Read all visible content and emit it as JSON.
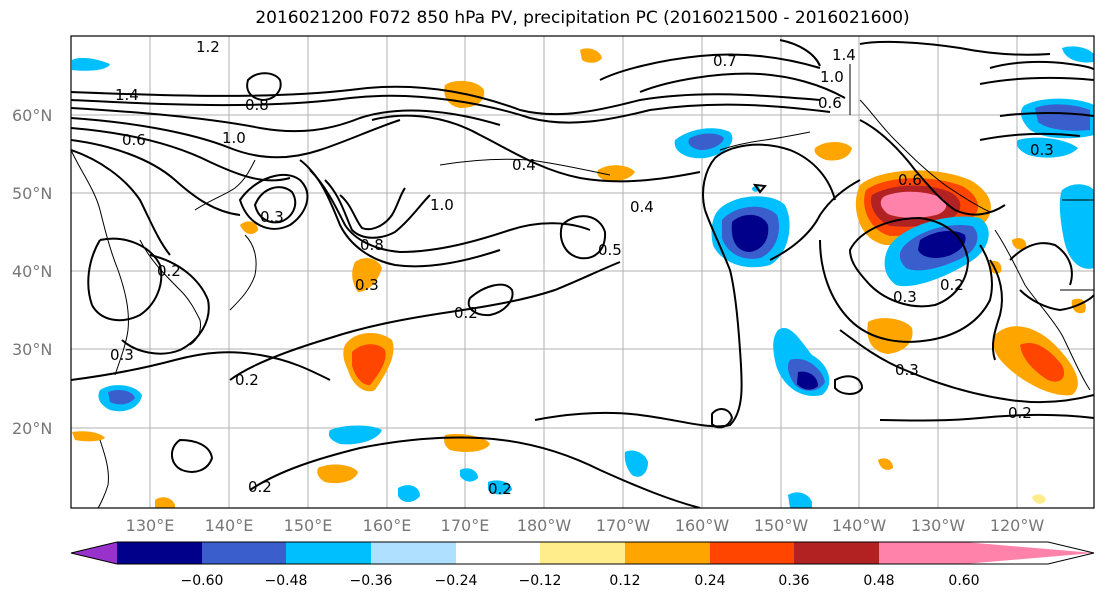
{
  "title": "2016021200 F072 850 hPa PV, precipitation PC (2016021500 - 2016021600)",
  "map": {
    "lat_labels": [
      "60°N",
      "50°N",
      "40°N",
      "30°N",
      "20°N"
    ],
    "lon_labels": [
      "130°E",
      "140°E",
      "150°E",
      "160°E",
      "170°E",
      "180°W",
      "170°W",
      "160°W",
      "150°W",
      "140°W",
      "130°W",
      "120°W"
    ],
    "contour_labels": [
      "1.2",
      "1.4",
      "0.8",
      "1.0",
      "0.6",
      "0.7",
      "1.4",
      "1.0",
      "0.6",
      "0.4",
      "0.5",
      "0.4",
      "0.3",
      "0.2",
      "0.3",
      "0.8",
      "1.0",
      "0.3",
      "0.2",
      "0.2",
      "0.2",
      "0.2",
      "0.3",
      "0.2",
      "0.6",
      "0.3",
      "0.2",
      "0.3"
    ]
  },
  "colorbar": {
    "ticks": [
      "−0.60",
      "−0.48",
      "−0.36",
      "−0.24",
      "−0.12",
      "0.12",
      "0.24",
      "0.36",
      "0.48",
      "0.60"
    ],
    "colors": [
      "#9932cc",
      "#00008b",
      "#3a5fcd",
      "#00bfff",
      "#b0e0ff",
      "#ffffff",
      "#ffec8b",
      "#ffa500",
      "#ff4500",
      "#b22222",
      "#ff82ab"
    ]
  }
}
